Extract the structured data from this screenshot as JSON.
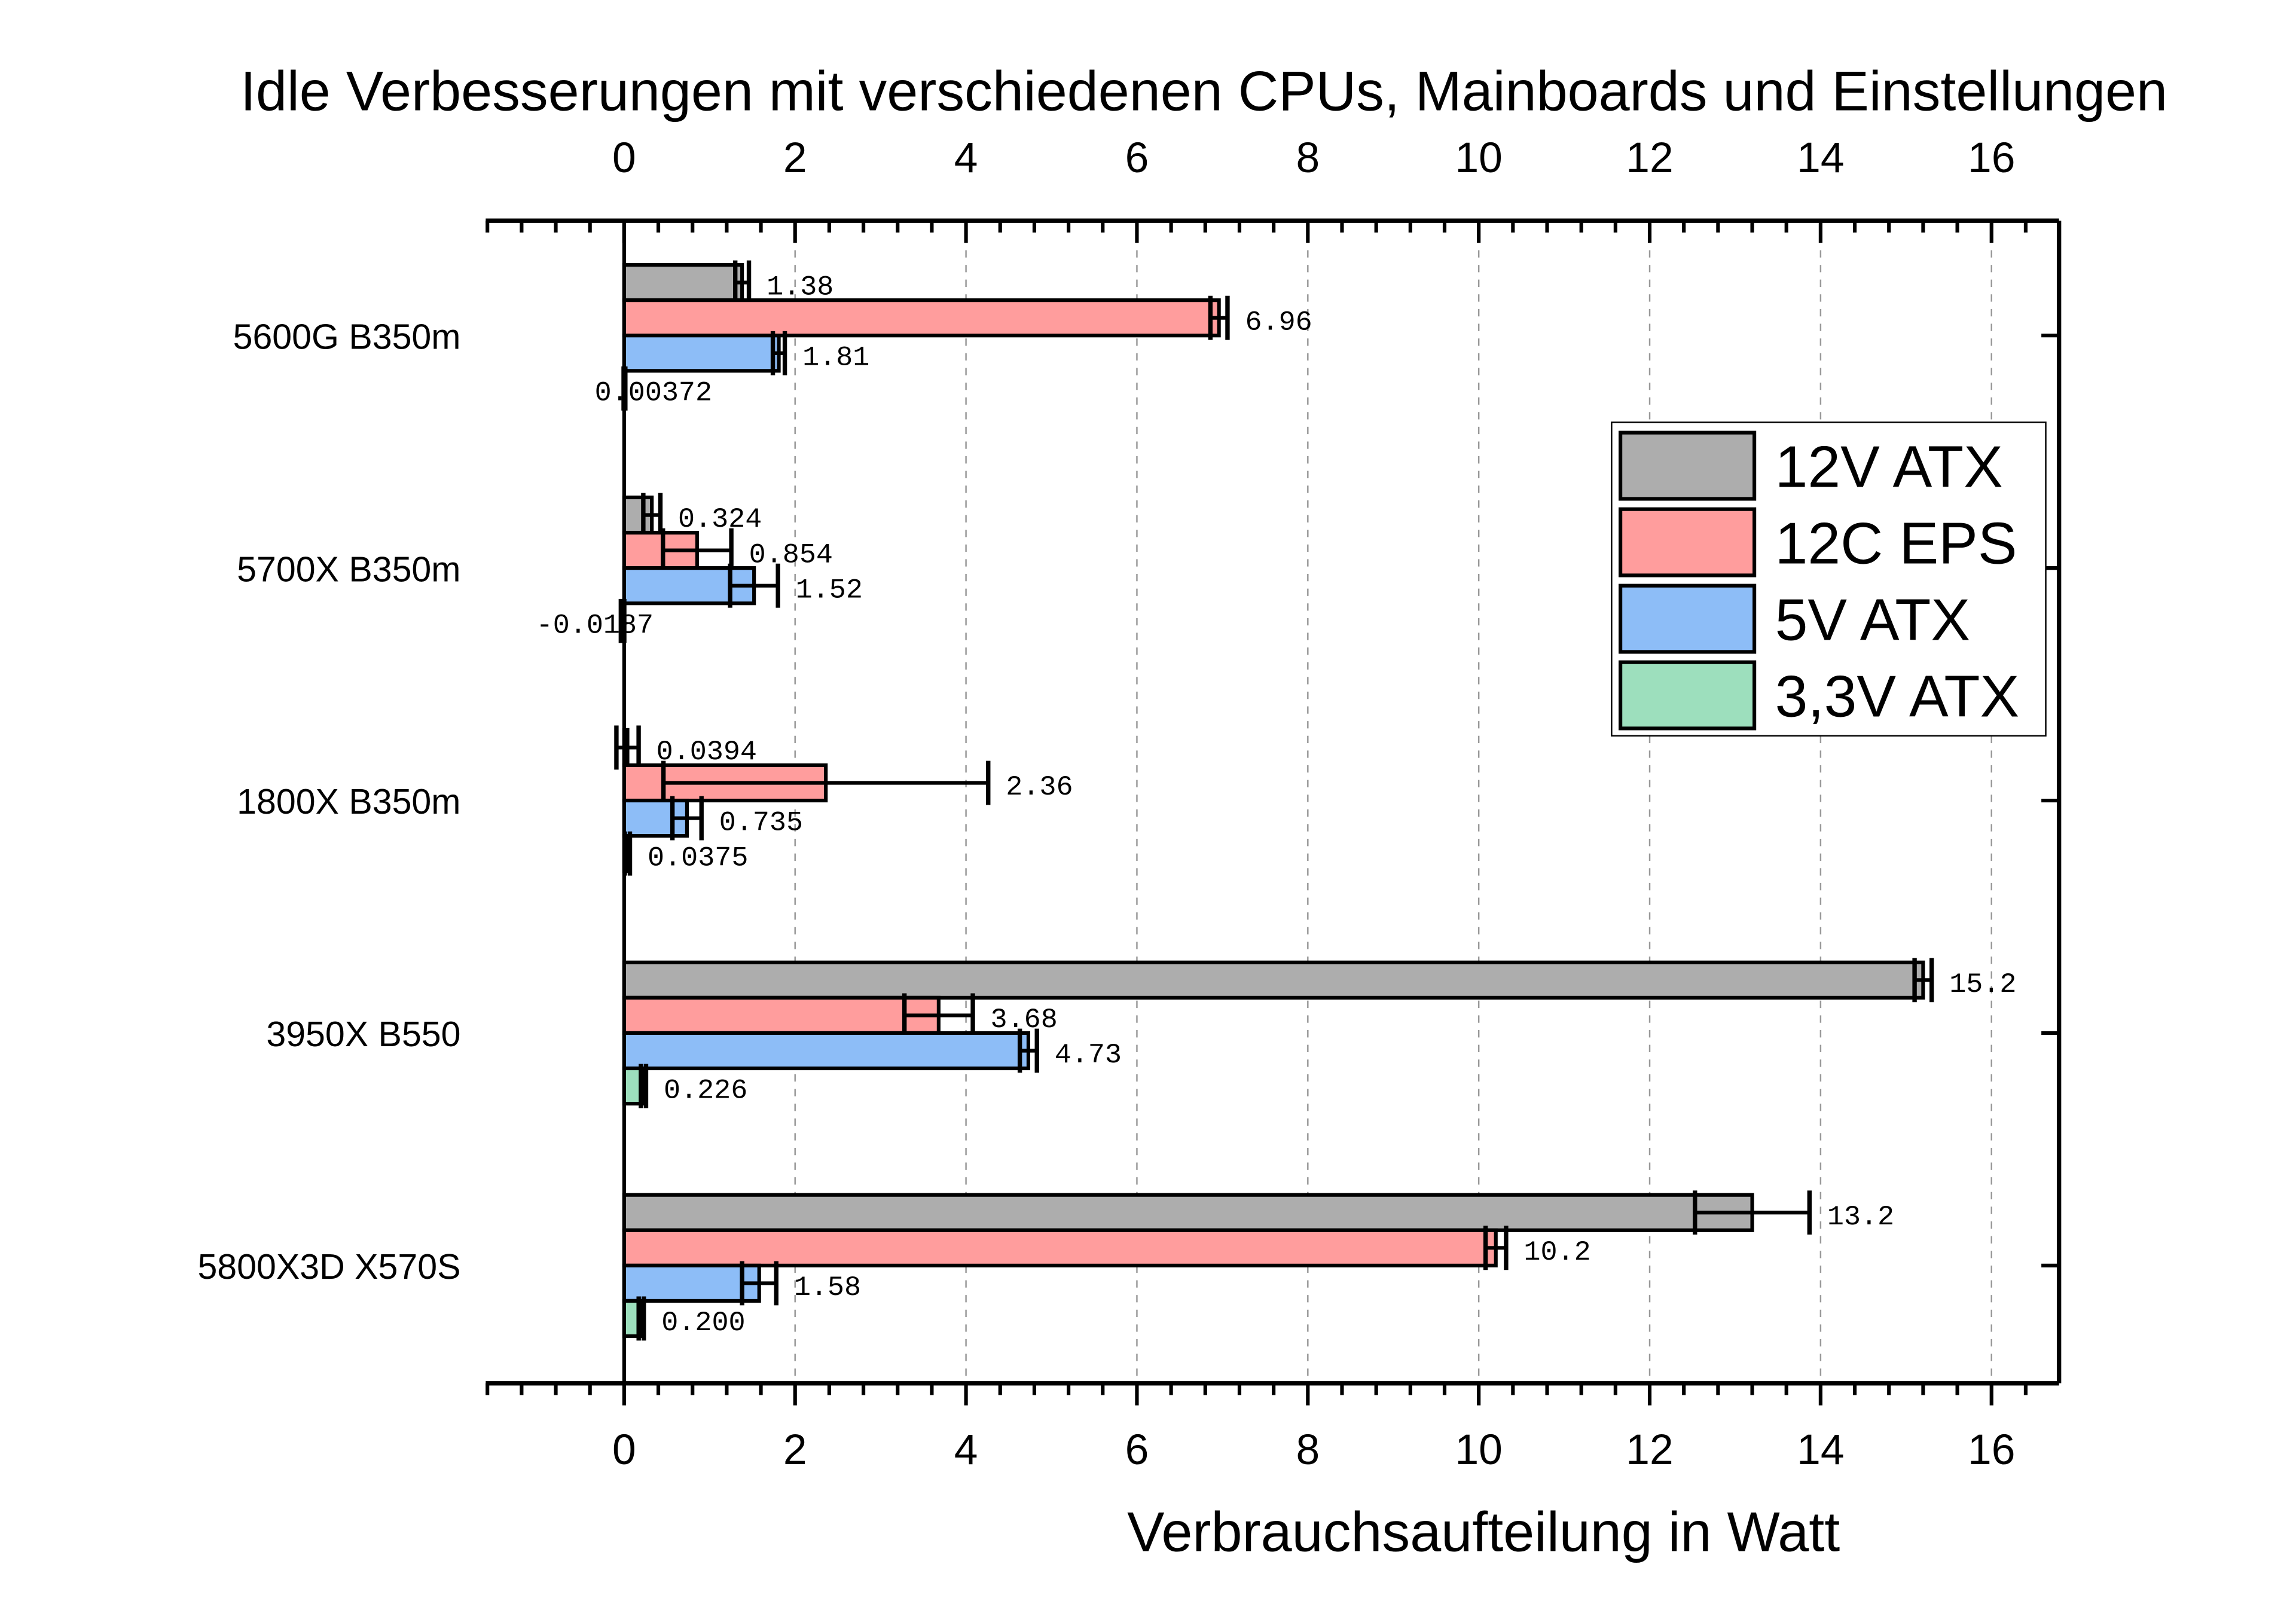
{
  "chart_data": {
    "type": "bar",
    "orientation": "horizontal",
    "title": "Idle Verbesserungen mit verschiedenen CPUs, Mainboards und Einstellungen",
    "xlabel": "Verbrauchsaufteilung in Watt",
    "ylabel": "",
    "xlim": [
      -1.62,
      16.79
    ],
    "x_ticks": [
      0,
      2,
      4,
      6,
      8,
      10,
      12,
      14,
      16
    ],
    "grid": "vertical dashed",
    "legend_placement": "right",
    "categories": [
      "5600G B350m",
      "5700X B350m",
      "1800X B350m",
      "3950X B550",
      "5800X3D X570S"
    ],
    "series": [
      {
        "name": "12V ATX",
        "color": "#adadad",
        "values": [
          1.38,
          0.324,
          0.0394,
          15.2,
          13.2
        ],
        "errors": [
          0.08,
          0.1,
          0.13,
          0.1,
          0.67
        ],
        "labels": [
          "1.38",
          "0.324",
          "0.0394",
          "15.2",
          "13.2"
        ]
      },
      {
        "name": "12C EPS",
        "color": "#ff9d9d",
        "values": [
          6.96,
          0.854,
          2.36,
          3.68,
          10.2
        ],
        "errors": [
          0.1,
          0.4,
          1.9,
          0.4,
          0.12
        ],
        "labels": [
          "6.96",
          "0.854",
          "2.36",
          "3.68",
          "10.2"
        ]
      },
      {
        "name": "5V ATX",
        "color": "#8dbdf7",
        "values": [
          1.81,
          1.52,
          0.735,
          4.73,
          1.58
        ],
        "errors": [
          0.07,
          0.28,
          0.17,
          0.1,
          0.2
        ],
        "labels": [
          "1.81",
          "1.52",
          "0.735",
          "4.73",
          "1.58"
        ]
      },
      {
        "name": "3,3V ATX",
        "color": "#9ddfbd",
        "values": [
          0.00372,
          -0.0187,
          0.0375,
          0.226,
          0.2
        ],
        "errors": [
          0.01,
          0.02,
          0.03,
          0.03,
          0.03
        ],
        "labels": [
          "0.00372",
          "-0.0187",
          "0.0375",
          "0.226",
          "0.200"
        ]
      }
    ]
  }
}
